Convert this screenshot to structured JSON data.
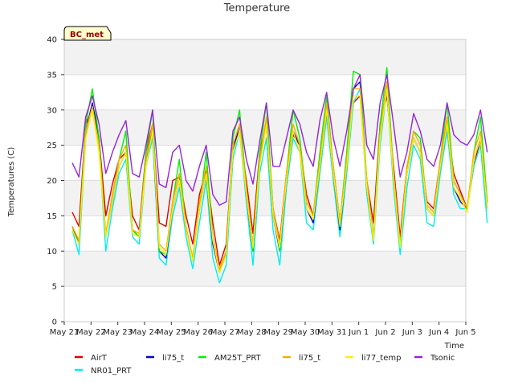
{
  "chart_data": {
    "type": "line",
    "title": "Temperature",
    "xlabel": "Time",
    "ylabel": "Temperatures (C)",
    "badge": "BC_met",
    "ylim": [
      0,
      40
    ],
    "yticks": [
      0,
      5,
      10,
      15,
      20,
      25,
      30,
      35,
      40
    ],
    "xlim": [
      0,
      15
    ],
    "xticks": [
      {
        "x": 0,
        "label": "May 21"
      },
      {
        "x": 1,
        "label": "May 22"
      },
      {
        "x": 2,
        "label": "May 23"
      },
      {
        "x": 3,
        "label": "May 24"
      },
      {
        "x": 4,
        "label": "May 25"
      },
      {
        "x": 5,
        "label": "May 26"
      },
      {
        "x": 6,
        "label": "May 27"
      },
      {
        "x": 7,
        "label": "May 28"
      },
      {
        "x": 8,
        "label": "May 29"
      },
      {
        "x": 9,
        "label": "May 30"
      },
      {
        "x": 10,
        "label": "May 31"
      },
      {
        "x": 11,
        "label": "Jun 1"
      },
      {
        "x": 12,
        "label": "Jun 2"
      },
      {
        "x": 13,
        "label": "Jun 3"
      },
      {
        "x": 14,
        "label": "Jun 4"
      },
      {
        "x": 15,
        "label": "Jun 5"
      }
    ],
    "grid": true,
    "legend_position": "bottom",
    "x_start": 0.3,
    "x_step": 0.25,
    "series": [
      {
        "name": "AirT",
        "color": "#dd0000",
        "values": [
          15.5,
          13.5,
          28,
          30,
          26,
          15,
          19.5,
          23,
          24,
          15,
          13,
          24,
          28,
          14,
          13.5,
          20,
          20.5,
          15,
          11,
          18,
          21.5,
          14,
          8,
          11,
          25,
          27,
          20,
          12.5,
          24,
          28,
          16,
          11.5,
          21,
          26.5,
          25,
          18,
          15,
          23,
          29,
          22,
          14,
          23,
          31,
          32,
          20,
          14,
          28,
          32,
          22,
          12,
          22,
          26,
          24,
          17,
          16,
          23,
          28,
          21,
          18.5,
          16,
          22,
          26,
          17
        ]
      },
      {
        "name": "NR01_PRT",
        "color": "#00eeee",
        "values": [
          13,
          9.5,
          26,
          31,
          25,
          10,
          16,
          21,
          23,
          12,
          11,
          22,
          26,
          9,
          8,
          15,
          19,
          12,
          7.5,
          14,
          20,
          9,
          5.5,
          8,
          23,
          27,
          17,
          8,
          21,
          26,
          13,
          8,
          19,
          26,
          24,
          14,
          13,
          21,
          29,
          20,
          12,
          21,
          31,
          33,
          18,
          11,
          25,
          33,
          19,
          9.5,
          19,
          25,
          23,
          14,
          13.5,
          21,
          27,
          18,
          16,
          16,
          22,
          25,
          14
        ]
      },
      {
        "name": "li75_t",
        "color": "#0000cc",
        "values": [
          13.5,
          11,
          27,
          31,
          26,
          12,
          17,
          22,
          24,
          13,
          12,
          23,
          27,
          10,
          9,
          16,
          20,
          13,
          9,
          16,
          21,
          11,
          7,
          10,
          24,
          28,
          18,
          10,
          23,
          28,
          15,
          10,
          20,
          27,
          25,
          16,
          14,
          22,
          30,
          21,
          13,
          22,
          33,
          34,
          19,
          12,
          27,
          34,
          20,
          11,
          21,
          26,
          24,
          16,
          15,
          22,
          28,
          19,
          17,
          16,
          23,
          26,
          16
        ]
      },
      {
        "name": "AM25T_PRT",
        "color": "#00ee00",
        "values": [
          13.5,
          11.5,
          28,
          33,
          26,
          12,
          18,
          23,
          27,
          13,
          12,
          24,
          30,
          10,
          9.5,
          17,
          23,
          13,
          9,
          16,
          24,
          12,
          7,
          9.5,
          26,
          30,
          19,
          10,
          24,
          31,
          16,
          10,
          21,
          30,
          26,
          17,
          15,
          24,
          32,
          22,
          14,
          24,
          35.5,
          35,
          20,
          12,
          28,
          36,
          21,
          10.5,
          21,
          27,
          26,
          16,
          15,
          23,
          31,
          20,
          18,
          16,
          24,
          29,
          17
        ]
      },
      {
        "name": "li75_t",
        "color": "#ffaa00",
        "values": [
          13.5,
          11.5,
          27,
          30.5,
          25,
          12.5,
          18,
          23,
          25,
          13,
          12.5,
          23,
          28,
          11,
          10,
          17,
          21,
          13.5,
          9,
          17,
          22,
          12,
          7.5,
          10,
          25,
          28,
          19,
          11,
          23,
          29,
          16,
          11,
          21,
          28,
          25,
          17,
          15,
          23,
          31,
          22,
          14,
          23,
          33,
          33,
          20,
          12,
          27,
          34,
          21,
          11,
          22,
          27,
          25,
          16.5,
          15.5,
          23,
          29,
          20,
          18,
          16,
          24,
          27,
          16.5
        ]
      },
      {
        "name": "li77_temp",
        "color": "#ffee00",
        "values": [
          13,
          11,
          26,
          30,
          24,
          12,
          17,
          22,
          24,
          12.5,
          12,
          22,
          27,
          10.5,
          9.5,
          16,
          20,
          13,
          8.5,
          16,
          21,
          11.5,
          7,
          9.5,
          24,
          27,
          18,
          10.5,
          22,
          28,
          15,
          10.5,
          20,
          27,
          24,
          16,
          14.5,
          22,
          30,
          21,
          13.5,
          22,
          32,
          32,
          19,
          11.5,
          26,
          33,
          20,
          10.5,
          21,
          26,
          24,
          16,
          15,
          22,
          28,
          19,
          17.5,
          15.5,
          23,
          26,
          16
        ]
      },
      {
        "name": "Tsonic",
        "color": "#9922dd",
        "values": [
          22.5,
          20.5,
          29,
          32,
          28,
          21,
          24,
          26.5,
          28.5,
          21,
          20.5,
          25,
          30,
          19.5,
          19,
          24,
          25,
          20,
          18.5,
          22,
          25,
          18,
          16.5,
          17,
          27,
          29,
          23,
          19.5,
          25.5,
          31,
          22,
          22,
          26,
          30,
          28,
          24,
          22,
          28.5,
          32.5,
          26,
          22,
          27,
          33,
          35,
          25,
          23,
          31,
          35,
          28,
          20.5,
          24,
          29.5,
          27,
          23,
          22,
          25,
          31,
          26.5,
          25.5,
          25,
          26.5,
          30,
          24
        ]
      }
    ]
  }
}
